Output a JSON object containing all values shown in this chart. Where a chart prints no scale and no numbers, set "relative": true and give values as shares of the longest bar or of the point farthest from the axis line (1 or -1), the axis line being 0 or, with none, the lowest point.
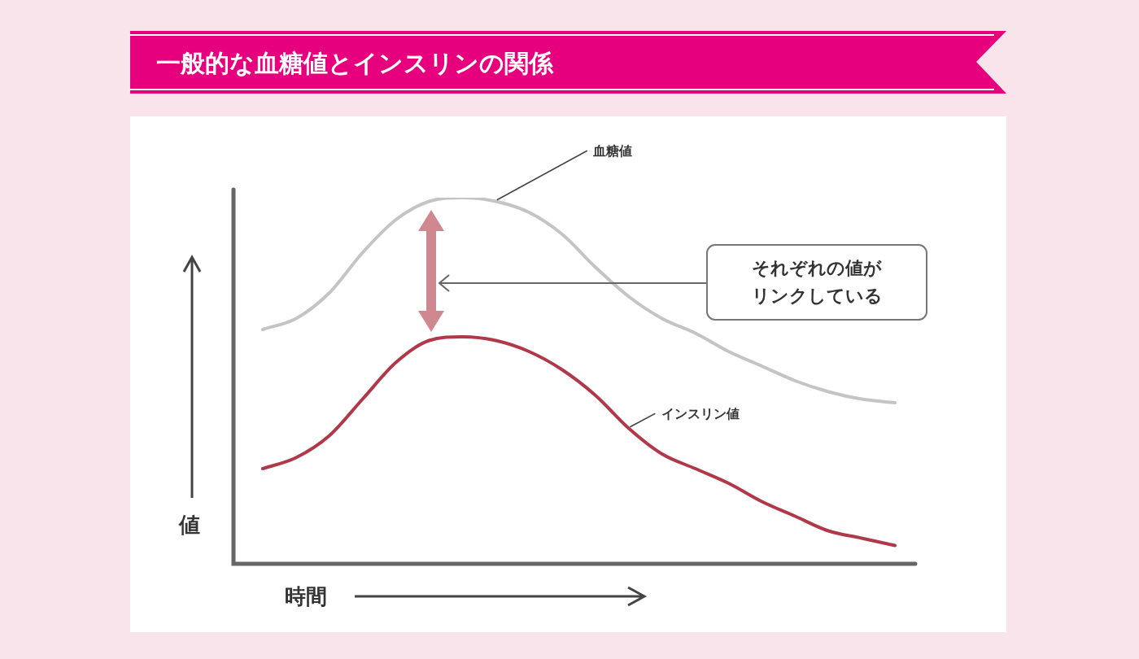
{
  "chart_data": {
    "type": "line",
    "title": "一般的な血糖値とインスリンの関係",
    "xlabel": "時間",
    "ylabel": "値",
    "relative": true,
    "legend": false,
    "grid": false,
    "marker": "none",
    "line_style": "solid",
    "categories": [
      null,
      null,
      null,
      null,
      null,
      null,
      null,
      null,
      null,
      null,
      null,
      null,
      null,
      null,
      null,
      null,
      null,
      null,
      null,
      null
    ],
    "series": [
      {
        "name": "血糖値",
        "color": "#c4c4c4",
        "values": [
          0.64,
          0.67,
          0.74,
          0.85,
          0.94,
          0.99,
          1.0,
          0.99,
          0.96,
          0.9,
          0.81,
          0.73,
          0.67,
          0.63,
          0.58,
          0.54,
          0.5,
          0.47,
          0.45,
          0.44
        ]
      },
      {
        "name": "インスリン値",
        "color": "#b03848",
        "values": [
          0.26,
          0.29,
          0.35,
          0.45,
          0.55,
          0.61,
          0.62,
          0.61,
          0.58,
          0.53,
          0.46,
          0.37,
          0.3,
          0.26,
          0.22,
          0.17,
          0.13,
          0.09,
          0.07,
          0.05
        ]
      }
    ],
    "annotations": [
      "それぞれの値がリンクしている"
    ]
  }
}
